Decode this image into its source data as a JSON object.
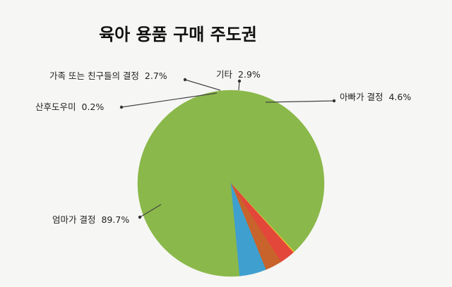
{
  "chart_data": {
    "type": "pie",
    "title": "육아 용품 구매 주도권",
    "slices": [
      {
        "label": "엄마가 결정",
        "value": 89.7,
        "display": "89.7%",
        "color": "#8ab84a"
      },
      {
        "label": "산후도우미",
        "value": 0.2,
        "display": "0.2%",
        "color": "#f2c12e"
      },
      {
        "label": "가족 또는 친구들의 결정",
        "value": 2.7,
        "display": "2.7%",
        "color": "#e2473a"
      },
      {
        "label": "기타",
        "value": 2.9,
        "display": "2.9%",
        "color": "#c7632b"
      },
      {
        "label": "아빠가 결정",
        "value": 4.6,
        "display": "4.6%",
        "color": "#3fa0cf"
      }
    ]
  }
}
